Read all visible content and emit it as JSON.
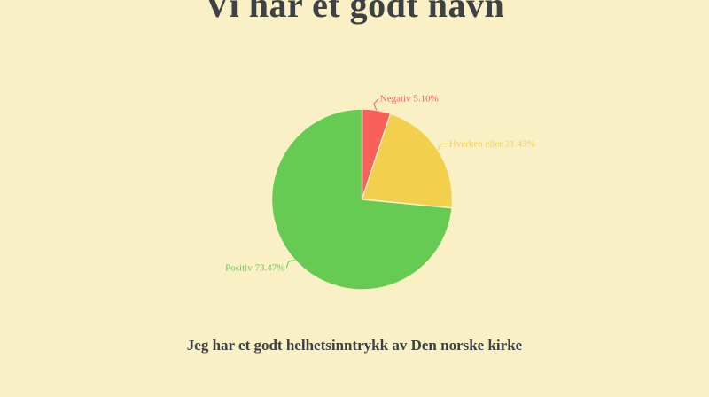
{
  "page": {
    "background_color": "#faf0c5",
    "text_color": "#3e4144"
  },
  "chart_data": {
    "type": "pie",
    "title": "Vi har et godt navn",
    "caption": "Jeg har et godt helhetsinntrykk av Den norske kirke",
    "start_angle_deg": 0,
    "direction": "clockwise",
    "legend_position": "none",
    "label_style": "outside-with-leader-lines",
    "slices": [
      {
        "label": "Negativ",
        "value": 5.1,
        "display": "Negativ 5.10%",
        "color": "#f8605b"
      },
      {
        "label": "Hverken eller",
        "value": 21.43,
        "display": "Hverken eller 21.43%",
        "color": "#f2d04d"
      },
      {
        "label": "Positiv",
        "value": 73.47,
        "display": "Positiv 73.47%",
        "color": "#65cb52"
      }
    ]
  }
}
